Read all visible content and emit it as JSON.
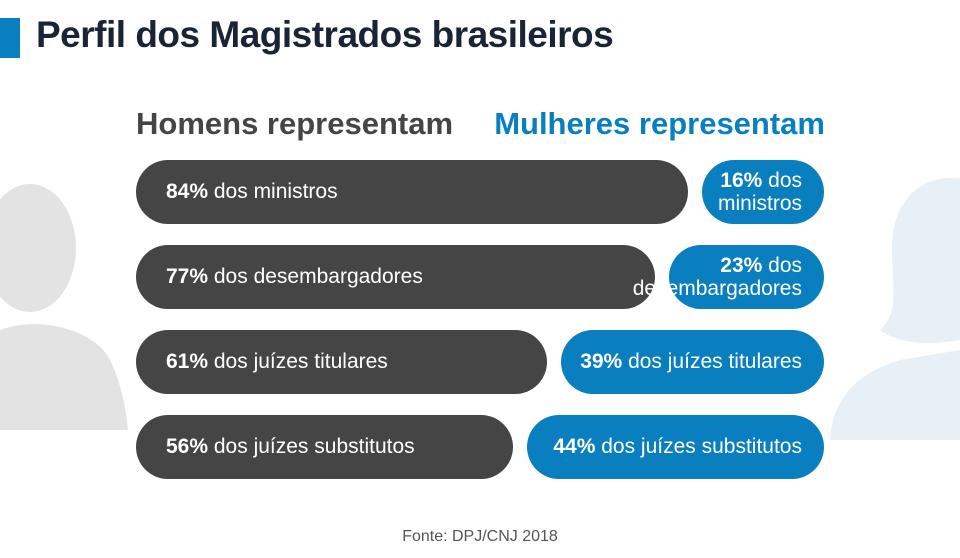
{
  "title": "Perfil dos Magistrados brasileiros",
  "colors": {
    "men": "#454545",
    "women": "#0a7fc0",
    "title": "#1a2437",
    "accent": "#0a7fc0"
  },
  "icons": {
    "left": "male-silhouette-icon",
    "right": "female-silhouette-icon"
  },
  "chart_data": {
    "type": "bar",
    "orientation": "horizontal-diverging",
    "series_headers": [
      "Homens representam",
      "Mulheres representam"
    ],
    "categories": [
      "dos ministros",
      "dos desembargadores",
      "dos juízes titulares",
      "dos juízes substitutos"
    ],
    "series": [
      {
        "name": "Homens representam",
        "values": [
          84,
          77,
          61,
          56
        ],
        "labels": [
          "84%",
          "77%",
          "61%",
          "56%"
        ],
        "texts": [
          "dos ministros",
          "dos desembargadores",
          "dos juízes titulares",
          "dos juízes substitutos"
        ]
      },
      {
        "name": "Mulheres representam",
        "values": [
          16,
          23,
          39,
          44
        ],
        "labels": [
          "16%",
          "23%",
          "39%",
          "44%"
        ],
        "texts": [
          "dos ministros",
          "dos desembargadores",
          "dos juízes titulares",
          "dos juízes substitutos"
        ]
      }
    ],
    "unit": "%"
  },
  "source": "Fonte: DPJ/CNJ 2018"
}
